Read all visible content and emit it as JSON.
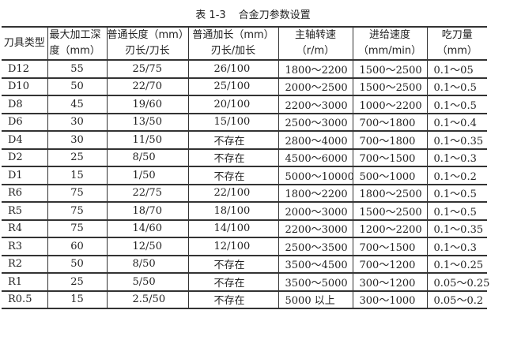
{
  "title": {
    "number": "表 1-3",
    "text": "合金刀参数设置"
  },
  "headers": [
    [
      "刀具类型",
      ""
    ],
    [
      "最大加工深",
      "度（mm）"
    ],
    [
      "普通长度（mm）",
      "刃长/刀长"
    ],
    [
      "普通加长（mm）",
      "刃长/加长"
    ],
    [
      "主轴转速",
      "（r/m）"
    ],
    [
      "进给速度",
      "（mm/min）"
    ],
    [
      "吃刀量",
      "（mm）"
    ]
  ],
  "rows": [
    [
      "D12",
      "55",
      "25/75",
      "26/100",
      "1800～2200",
      "1500～2500",
      "0.1～05"
    ],
    [
      "D10",
      "50",
      "22/70",
      "25/100",
      "2000～2500",
      "1500～2500",
      "0.1～0.5"
    ],
    [
      "D8",
      "45",
      "19/60",
      "20/100",
      "2200～3000",
      "1000～2200",
      "0.1～0.5"
    ],
    [
      "D6",
      "30",
      "13/50",
      "15/100",
      "2500～3000",
      "700～1800",
      "0.1～0.4"
    ],
    [
      "D4",
      "30",
      "11/50",
      "不存在",
      "2800～4000",
      "700～1800",
      "0.1～0.35"
    ],
    [
      "D2",
      "25",
      "8/50",
      "不存在",
      "4500～6000",
      "700～1500",
      "0.1～0.3"
    ],
    [
      "D1",
      "15",
      "1/50",
      "不存在",
      "5000～10000",
      "500～1000",
      "0.1～0.2"
    ],
    [
      "R6",
      "75",
      "22/75",
      "22/100",
      "1800～2200",
      "1800～2500",
      "0.1～0.5"
    ],
    [
      "R5",
      "75",
      "18/70",
      "18/100",
      "2000～3000",
      "1500～2500",
      "0.1～0.5"
    ],
    [
      "R4",
      "75",
      "14/60",
      "14/100",
      "2200～3000",
      "1200～2200",
      "0.1～0.35"
    ],
    [
      "R3",
      "60",
      "12/50",
      "12/100",
      "2500～3500",
      "700～1500",
      "0.1～0.3"
    ],
    [
      "R2",
      "50",
      "8/50",
      "不存在",
      "3500～4500",
      "700～1200",
      "0.1～0.25"
    ],
    [
      "R1",
      "25",
      "5/50",
      "不存在",
      "3500～5000",
      "300～1200",
      "0.05～0.25"
    ],
    [
      "R0.5",
      "15",
      "2.5/50",
      "不存在",
      "5000 以上",
      "300～1000",
      "0.05～0.2"
    ]
  ]
}
